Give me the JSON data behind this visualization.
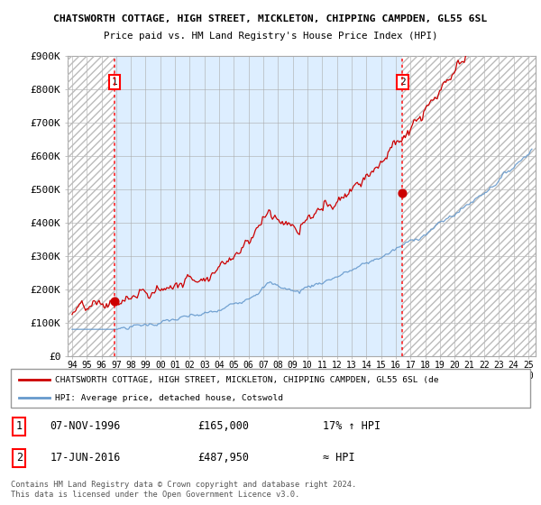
{
  "title1": "CHATSWORTH COTTAGE, HIGH STREET, MICKLETON, CHIPPING CAMPDEN, GL55 6SL",
  "title2": "Price paid vs. HM Land Registry's House Price Index (HPI)",
  "ylim": [
    0,
    900000
  ],
  "yticks": [
    0,
    100000,
    200000,
    300000,
    400000,
    500000,
    600000,
    700000,
    800000,
    900000
  ],
  "ytick_labels": [
    "£0",
    "£100K",
    "£200K",
    "£300K",
    "£400K",
    "£500K",
    "£600K",
    "£700K",
    "£800K",
    "£900K"
  ],
  "sale1_year": 1996.9,
  "sale1_price": 165000,
  "sale1_label": "1",
  "sale2_year": 2016.46,
  "sale2_price": 487950,
  "sale2_label": "2",
  "legend_line1": "CHATSWORTH COTTAGE, HIGH STREET, MICKLETON, CHIPPING CAMPDEN, GL55 6SL (de",
  "legend_line2": "HPI: Average price, detached house, Cotswold",
  "table_row1": [
    "1",
    "07-NOV-1996",
    "£165,000",
    "17% ↑ HPI"
  ],
  "table_row2": [
    "2",
    "17-JUN-2016",
    "£487,950",
    "≈ HPI"
  ],
  "footnote": "Contains HM Land Registry data © Crown copyright and database right 2024.\nThis data is licensed under the Open Government Licence v3.0.",
  "hpi_color": "#6699cc",
  "price_color": "#cc0000",
  "light_blue_bg": "#ddeeff",
  "hatch_color": "#bbbbbb",
  "background_color": "#ffffff",
  "xlim_left": 1993.7,
  "xlim_right": 2025.5
}
